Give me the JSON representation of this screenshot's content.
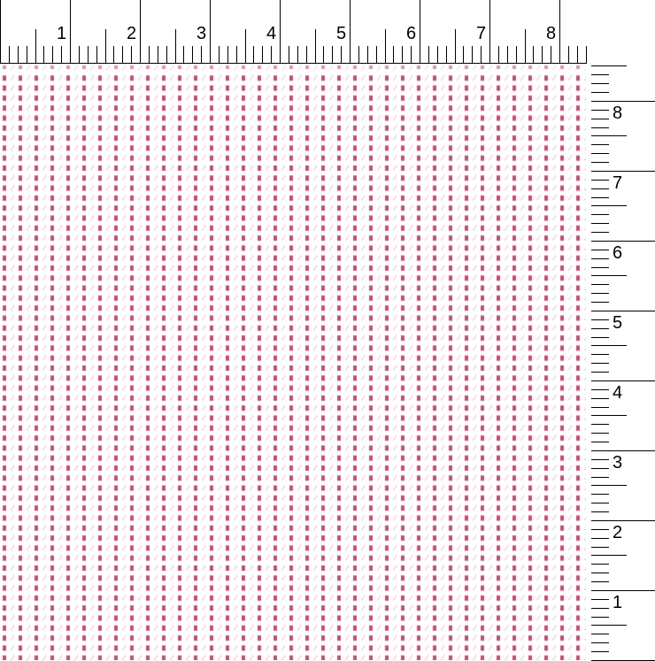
{
  "swatch": {
    "pattern_color": "#c0506e",
    "background_color": "#ffffff",
    "motifs": [
      "square",
      "dotted-slash"
    ]
  },
  "top_ruler": {
    "labels": [
      "1",
      "2",
      "3",
      "4",
      "5",
      "6",
      "7",
      "8"
    ]
  },
  "right_ruler": {
    "labels": [
      "8",
      "7",
      "6",
      "5",
      "4",
      "3",
      "2",
      "1"
    ]
  }
}
